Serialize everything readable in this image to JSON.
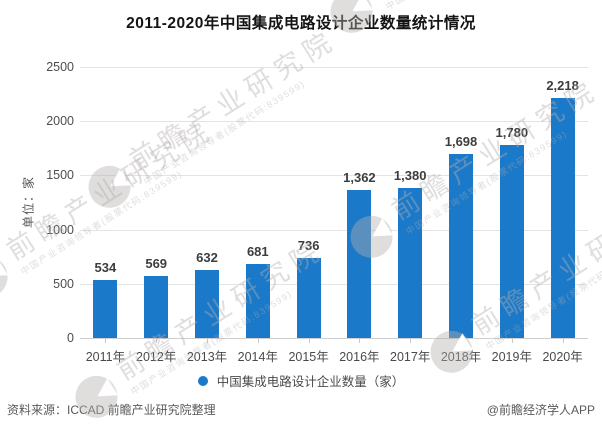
{
  "title": "2011-2020年中国集成电路设计企业数量统计情况",
  "chart_data": {
    "type": "bar",
    "title": "2011-2020年中国集成电路设计企业数量统计情况",
    "categories": [
      "2011年",
      "2012年",
      "2013年",
      "2014年",
      "2015年",
      "2016年",
      "2017年",
      "2018年",
      "2019年",
      "2020年"
    ],
    "values": [
      534,
      569,
      632,
      681,
      736,
      1362,
      1380,
      1698,
      1780,
      2218
    ],
    "value_labels": [
      "534",
      "569",
      "632",
      "681",
      "736",
      "1,362",
      "1,380",
      "1,698",
      "1,780",
      "2,218"
    ],
    "xlabel": "",
    "ylabel": "单位：家",
    "ylim": [
      0,
      2500
    ],
    "yticks": [
      0,
      500,
      1000,
      1500,
      2000,
      2500
    ],
    "grid": true,
    "legend": [
      "中国集成电路设计企业数量（家）"
    ],
    "legend_position": "bottom",
    "bar_color": "#1a79c8"
  },
  "legend_label": "中国集成电路设计企业数量（家）",
  "footer": {
    "source": "资料来源：ICCAD 前瞻产业研究院整理",
    "credit": "@前瞻经济学人APP"
  },
  "watermark": {
    "logo": "qianzhan-logo",
    "text": "前瞻产业研究院",
    "subtext": "中国产业咨询领导者(股票代码:839599)"
  }
}
